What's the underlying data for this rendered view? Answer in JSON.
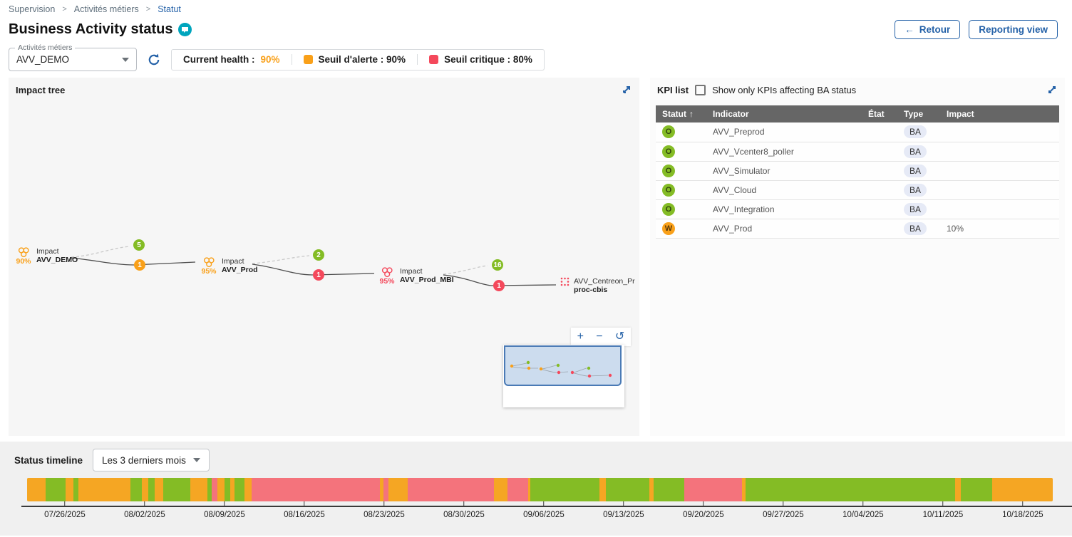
{
  "breadcrumb": {
    "items": [
      "Supervision",
      "Activités métiers",
      "Statut"
    ]
  },
  "header": {
    "title": "Business Activity status",
    "back_label": "Retour",
    "back_arrow": "←",
    "reporting_label": "Reporting view"
  },
  "controls": {
    "ba_select": {
      "label": "Activités métiers",
      "value": "AVV_DEMO"
    },
    "legend": {
      "current_health_label": "Current health :",
      "current_health_value": "90%",
      "warning_label": "Seuil d'alerte : 90%",
      "critical_label": "Seuil critique : 80%"
    }
  },
  "impact_tree": {
    "title": "Impact tree",
    "nodes": [
      {
        "percent": "90%",
        "line1": "Impact",
        "line2": "AVV_DEMO",
        "state": "warning"
      },
      {
        "percent": "95%",
        "line1": "Impact",
        "line2": "AVV_Prod",
        "state": "warning"
      },
      {
        "percent": "95%",
        "line1": "Impact",
        "line2": "AVV_Prod_MBI",
        "state": "critical"
      },
      {
        "percent": "",
        "line1": "AVV_Centreon_Pr",
        "line2": "proc-cbis",
        "state": "critical"
      }
    ],
    "badges": [
      {
        "value": "5",
        "type": "ok"
      },
      {
        "value": "1",
        "type": "warn"
      },
      {
        "value": "2",
        "type": "ok"
      },
      {
        "value": "1",
        "type": "crit"
      },
      {
        "value": "16",
        "type": "ok"
      },
      {
        "value": "1",
        "type": "crit"
      }
    ],
    "zoom_in": "+",
    "zoom_out": "−",
    "zoom_reset": "↺"
  },
  "kpi_list": {
    "title": "KPI list",
    "filter_label": "Show only KPIs affecting BA status",
    "filter_checked": false,
    "sort_arrow": "↑",
    "columns": {
      "statut": "Statut",
      "indicator": "Indicator",
      "etat": "État",
      "type": "Type",
      "impact": "Impact"
    },
    "rows": [
      {
        "status": "O",
        "status_type": "ok",
        "indicator": "AVV_Preprod",
        "etat": "",
        "type": "BA",
        "impact": ""
      },
      {
        "status": "O",
        "status_type": "ok",
        "indicator": "AVV_Vcenter8_poller",
        "etat": "",
        "type": "BA",
        "impact": ""
      },
      {
        "status": "O",
        "status_type": "ok",
        "indicator": "AVV_Simulator",
        "etat": "",
        "type": "BA",
        "impact": ""
      },
      {
        "status": "O",
        "status_type": "ok",
        "indicator": "AVV_Cloud",
        "etat": "",
        "type": "BA",
        "impact": ""
      },
      {
        "status": "O",
        "status_type": "ok",
        "indicator": "AVV_Integration",
        "etat": "",
        "type": "BA",
        "impact": ""
      },
      {
        "status": "W",
        "status_type": "warn",
        "indicator": "AVV_Prod",
        "etat": "",
        "type": "BA",
        "impact": "10%"
      }
    ]
  },
  "timeline": {
    "title": "Status timeline",
    "range_value": "Les 3 derniers mois",
    "ticks": [
      "07/26/2025",
      "08/02/2025",
      "08/09/2025",
      "08/16/2025",
      "08/23/2025",
      "08/30/2025",
      "09/06/2025",
      "09/13/2025",
      "09/20/2025",
      "09/27/2025",
      "10/04/2025",
      "10/11/2025",
      "10/18/2025"
    ],
    "tick_start_pct": 3.68,
    "tick_step_pct": 7.783,
    "segments": [
      {
        "c": "o",
        "w": 1.81
      },
      {
        "c": "g",
        "w": 1.94
      },
      {
        "c": "o",
        "w": 0.76
      },
      {
        "c": "g",
        "w": 0.49
      },
      {
        "c": "o",
        "w": 5.07
      },
      {
        "c": "g",
        "w": 1.11
      },
      {
        "c": "o",
        "w": 0.63
      },
      {
        "c": "g",
        "w": 0.63
      },
      {
        "c": "o",
        "w": 0.83
      },
      {
        "c": "g",
        "w": 2.64
      },
      {
        "c": "o",
        "w": 1.67
      },
      {
        "c": "g",
        "w": 0.42
      },
      {
        "c": "r",
        "w": 0.56
      },
      {
        "c": "o",
        "w": 0.69
      },
      {
        "c": "g",
        "w": 0.56
      },
      {
        "c": "o",
        "w": 0.42
      },
      {
        "c": "g",
        "w": 0.97
      },
      {
        "c": "o",
        "w": 0.69
      },
      {
        "c": "r",
        "w": 12.5
      },
      {
        "c": "o",
        "w": 0.35
      },
      {
        "c": "r",
        "w": 0.49
      },
      {
        "c": "o",
        "w": 1.88
      },
      {
        "c": "r",
        "w": 8.4
      },
      {
        "c": "o",
        "w": 1.32
      },
      {
        "c": "r",
        "w": 2.08
      },
      {
        "c": "o",
        "w": 0.21
      },
      {
        "c": "g",
        "w": 6.74
      },
      {
        "c": "o",
        "w": 0.63
      },
      {
        "c": "g",
        "w": 4.24
      },
      {
        "c": "o",
        "w": 0.35
      },
      {
        "c": "g",
        "w": 2.99
      },
      {
        "c": "r",
        "w": 5.69
      },
      {
        "c": "o",
        "w": 0.35
      },
      {
        "c": "g",
        "w": 20.42
      },
      {
        "c": "o",
        "w": 0.56
      },
      {
        "c": "g",
        "w": 3.06
      },
      {
        "c": "o",
        "w": 5.9
      }
    ]
  },
  "colors": {
    "accent_blue": "#2562A8",
    "teal": "#00A5BD",
    "ok_green": "#84BC25",
    "warning_orange": "#F9A019",
    "critical_red": "#F4495C",
    "timeline_orange": "#F5A623",
    "timeline_red": "#F4737C",
    "table_header_gray": "#666666"
  }
}
